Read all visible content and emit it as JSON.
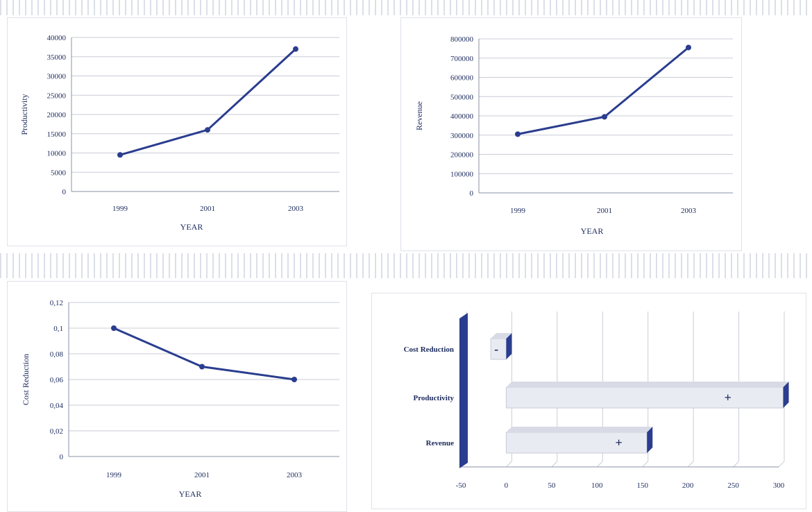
{
  "colors": {
    "series": "#2a3d8f",
    "grid": "#c9ccd6",
    "axis": "#8a90a6",
    "bar_fill": "#e9ebf2",
    "bar_cap": "#2a3d8f"
  },
  "chart_data": [
    {
      "type": "line",
      "x": [
        "1999",
        "2001",
        "2003"
      ],
      "series": [
        {
          "values": [
            9500,
            16000,
            37000
          ]
        }
      ],
      "xlabel": "YEAR",
      "ylabel": "Productivity",
      "ylim": [
        0,
        40000
      ],
      "yticks": [
        "0",
        "5000",
        "10000",
        "15000",
        "20000",
        "25000",
        "30000",
        "35000",
        "40000"
      ],
      "grid": true
    },
    {
      "type": "line",
      "x": [
        "1999",
        "2001",
        "2003"
      ],
      "series": [
        {
          "values": [
            305000,
            395000,
            755000
          ]
        }
      ],
      "xlabel": "YEAR",
      "ylabel": "Revenue",
      "ylim": [
        0,
        800000
      ],
      "yticks": [
        "0",
        "100000",
        "200000",
        "300000",
        "400000",
        "500000",
        "600000",
        "700000",
        "800000"
      ],
      "grid": true
    },
    {
      "type": "line",
      "x": [
        "1999",
        "2001",
        "2003"
      ],
      "series": [
        {
          "values": [
            0.1,
            0.07,
            0.06
          ]
        }
      ],
      "xlabel": "YEAR",
      "ylabel": "Cost Reduction",
      "ylim": [
        0,
        0.12
      ],
      "yticks": [
        "0",
        "0,02",
        "0,04",
        "0,06",
        "0,08",
        "0,1",
        "0,12"
      ],
      "grid": true
    },
    {
      "type": "bar",
      "orientation": "horizontal",
      "categories": [
        "Cost Reduction",
        "Productivity",
        "Revenue"
      ],
      "values": [
        -17,
        305,
        155
      ],
      "markers": [
        "-",
        "+",
        "+"
      ],
      "xlim": [
        -50,
        300
      ],
      "xticks": [
        "-50",
        "0",
        "50",
        "100",
        "150",
        "200",
        "250",
        "300"
      ],
      "grid": true
    }
  ]
}
